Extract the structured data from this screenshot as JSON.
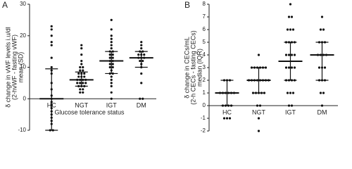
{
  "chart_data": [
    {
      "type": "dot",
      "panel": "A",
      "ylabel": [
        "δ change in vWF levels i.u/dl",
        "(2-hvWF - fasting vWF)",
        "mean (SD)"
      ],
      "xlabel": "Glucose tolerance status",
      "categories": [
        "HC",
        "NGT",
        "IGT",
        "DM"
      ],
      "ylim": [
        -10,
        30
      ],
      "yticks": [
        -10,
        0,
        10,
        20,
        30
      ],
      "points": [
        [
          23,
          22,
          20,
          18,
          17,
          13,
          10,
          9,
          8,
          5,
          3,
          1,
          0,
          -1,
          -2,
          -3,
          -4,
          -5,
          -6,
          -7,
          -8,
          -10,
          -10
        ],
        [
          17,
          16,
          14,
          12,
          11,
          10,
          10,
          9,
          9,
          8,
          8,
          8,
          7,
          7,
          7,
          6,
          6,
          6,
          6,
          5,
          5,
          5,
          5,
          4,
          4,
          4,
          3,
          3,
          2,
          2
        ],
        [
          25,
          22,
          20,
          19,
          18,
          17,
          16,
          15,
          15,
          14,
          14,
          13,
          13,
          12,
          12,
          11,
          11,
          10,
          10,
          9,
          8,
          8,
          7,
          6,
          5,
          4,
          2,
          0
        ],
        [
          18,
          17,
          16,
          15,
          15,
          14,
          14,
          14,
          13,
          13,
          13,
          12,
          12,
          11,
          10,
          8,
          5,
          0,
          0
        ]
      ],
      "center": [
        0,
        6,
        12,
        13
      ],
      "low": [
        -10,
        4,
        8,
        10
      ],
      "high": [
        9.5,
        8.5,
        15,
        15
      ],
      "color": "#111111"
    },
    {
      "type": "dot",
      "panel": "B",
      "ylabel": [
        "δ change in CECs/mL",
        "(2-h CECs - fasting CECs)",
        "median (IQR)"
      ],
      "categories": [
        "HC",
        "NGT",
        "IGT",
        "DM"
      ],
      "ylim": [
        -2,
        8
      ],
      "yticks": [
        -2,
        -1,
        0,
        1,
        2,
        3,
        4,
        5,
        6,
        7,
        8
      ],
      "points": [
        [
          2,
          2,
          2,
          1,
          1,
          1,
          1,
          1,
          1,
          0,
          0,
          0,
          0,
          -1,
          -1,
          -1
        ],
        [
          4,
          3,
          3,
          3,
          3,
          3,
          3,
          2,
          2,
          2,
          2,
          2,
          2,
          2,
          2,
          1,
          1,
          1,
          1,
          1,
          0,
          0,
          -1,
          -2
        ],
        [
          8,
          7,
          7,
          6,
          6,
          6,
          5,
          5,
          5,
          5,
          4,
          4,
          4,
          4,
          3,
          3,
          3,
          3,
          2,
          2,
          2,
          2,
          1,
          1,
          1,
          0,
          0
        ],
        [
          7,
          6,
          6,
          5,
          5,
          5,
          4,
          4,
          4,
          4,
          3,
          3,
          3,
          2,
          2,
          2,
          1,
          1,
          0
        ]
      ],
      "center": [
        1,
        2,
        3.5,
        4
      ],
      "low": [
        0,
        1,
        2,
        2
      ],
      "high": [
        2,
        3,
        5,
        5
      ],
      "color": "#111111"
    }
  ]
}
